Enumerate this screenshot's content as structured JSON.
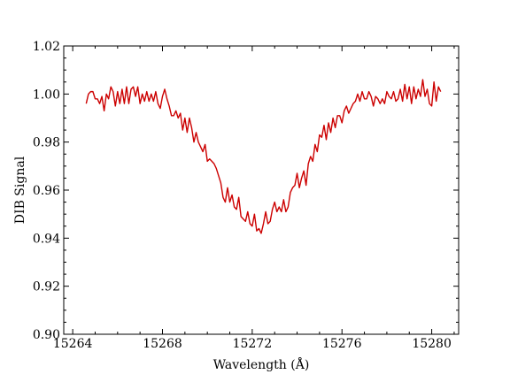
{
  "chart_data": {
    "type": "line",
    "title": "",
    "xlabel": "Wavelength (Å)",
    "ylabel": "DIB Signal",
    "xlim": [
      15263.6,
      15281.2
    ],
    "ylim": [
      0.9,
      1.02
    ],
    "xticks": [
      "15264",
      "15268",
      "15272",
      "15276",
      "15280"
    ],
    "xtick_values": [
      15264,
      15268,
      15272,
      15276,
      15280
    ],
    "yticks": [
      "0.90",
      "0.92",
      "0.94",
      "0.96",
      "0.98",
      "1.00",
      "1.02"
    ],
    "ytick_values": [
      0.9,
      0.92,
      0.94,
      0.96,
      0.98,
      1.0,
      1.02
    ],
    "grid": false,
    "line_color": "#cc0000",
    "series": [
      {
        "x": [
          15264.6,
          15264.7,
          15264.8,
          15264.9,
          15265.0,
          15265.1,
          15265.2,
          15265.3,
          15265.4,
          15265.5,
          15265.6,
          15265.7,
          15265.8,
          15265.9,
          15266.0,
          15266.1,
          15266.2,
          15266.3,
          15266.4,
          15266.5,
          15266.6,
          15266.7,
          15266.8,
          15266.9,
          15267.0,
          15267.1,
          15267.2,
          15267.3,
          15267.4,
          15267.5,
          15267.6,
          15267.7,
          15267.8,
          15267.9,
          15268.0,
          15268.1,
          15268.2,
          15268.3,
          15268.4,
          15268.5,
          15268.6,
          15268.7,
          15268.8,
          15268.9,
          15269.0,
          15269.1,
          15269.2,
          15269.3,
          15269.4,
          15269.5,
          15269.6,
          15269.7,
          15269.8,
          15269.9,
          15270.0,
          15270.1,
          15270.2,
          15270.3,
          15270.4,
          15270.5,
          15270.6,
          15270.7,
          15270.8,
          15270.9,
          15271.0,
          15271.1,
          15271.2,
          15271.3,
          15271.4,
          15271.5,
          15271.6,
          15271.7,
          15271.8,
          15271.9,
          15272.0,
          15272.1,
          15272.2,
          15272.3,
          15272.4,
          15272.5,
          15272.6,
          15272.7,
          15272.8,
          15272.9,
          15273.0,
          15273.1,
          15273.2,
          15273.3,
          15273.4,
          15273.5,
          15273.6,
          15273.7,
          15273.8,
          15273.9,
          15274.0,
          15274.1,
          15274.2,
          15274.3,
          15274.4,
          15274.5,
          15274.6,
          15274.7,
          15274.8,
          15274.9,
          15275.0,
          15275.1,
          15275.2,
          15275.3,
          15275.4,
          15275.5,
          15275.6,
          15275.7,
          15275.8,
          15275.9,
          15276.0,
          15276.1,
          15276.2,
          15276.3,
          15276.4,
          15276.5,
          15276.6,
          15276.7,
          15276.8,
          15276.9,
          15277.0,
          15277.1,
          15277.2,
          15277.3,
          15277.4,
          15277.5,
          15277.6,
          15277.7,
          15277.8,
          15277.9,
          15278.0,
          15278.1,
          15278.2,
          15278.3,
          15278.4,
          15278.5,
          15278.6,
          15278.7,
          15278.8,
          15278.9,
          15279.0,
          15279.1,
          15279.2,
          15279.3,
          15279.4,
          15279.5,
          15279.6,
          15279.7,
          15279.8,
          15279.9,
          15280.0,
          15280.1,
          15280.2,
          15280.3,
          15280.4
        ],
        "y": [
          0.996,
          1.0,
          1.001,
          1.001,
          0.998,
          0.998,
          0.996,
          0.999,
          0.993,
          1.0,
          0.998,
          1.003,
          1.001,
          0.995,
          1.001,
          0.996,
          1.002,
          0.996,
          1.003,
          0.996,
          1.002,
          1.003,
          0.999,
          1.003,
          0.996,
          1.0,
          0.997,
          1.001,
          0.997,
          1.0,
          0.997,
          1.001,
          0.996,
          0.994,
          0.999,
          1.002,
          0.998,
          0.995,
          0.991,
          0.991,
          0.993,
          0.99,
          0.992,
          0.985,
          0.99,
          0.984,
          0.99,
          0.986,
          0.98,
          0.984,
          0.98,
          0.978,
          0.976,
          0.979,
          0.972,
          0.973,
          0.972,
          0.971,
          0.969,
          0.966,
          0.963,
          0.957,
          0.955,
          0.961,
          0.955,
          0.958,
          0.953,
          0.952,
          0.957,
          0.949,
          0.948,
          0.947,
          0.951,
          0.946,
          0.945,
          0.95,
          0.943,
          0.944,
          0.942,
          0.946,
          0.951,
          0.946,
          0.947,
          0.952,
          0.955,
          0.951,
          0.953,
          0.951,
          0.956,
          0.951,
          0.953,
          0.959,
          0.961,
          0.962,
          0.967,
          0.961,
          0.965,
          0.968,
          0.962,
          0.971,
          0.974,
          0.972,
          0.979,
          0.976,
          0.983,
          0.982,
          0.987,
          0.981,
          0.988,
          0.984,
          0.99,
          0.986,
          0.991,
          0.991,
          0.988,
          0.993,
          0.995,
          0.992,
          0.994,
          0.996,
          0.997,
          1.0,
          0.997,
          1.001,
          0.998,
          0.998,
          1.001,
          0.999,
          0.995,
          0.999,
          0.998,
          0.996,
          0.998,
          0.996,
          1.001,
          0.999,
          0.998,
          1.001,
          0.997,
          0.998,
          1.002,
          0.997,
          1.004,
          0.998,
          1.003,
          0.996,
          1.003,
          0.998,
          1.002,
          0.999,
          1.006,
          0.999,
          1.002,
          0.996,
          0.995,
          1.005,
          0.997,
          1.003,
          1.001
        ]
      }
    ]
  }
}
